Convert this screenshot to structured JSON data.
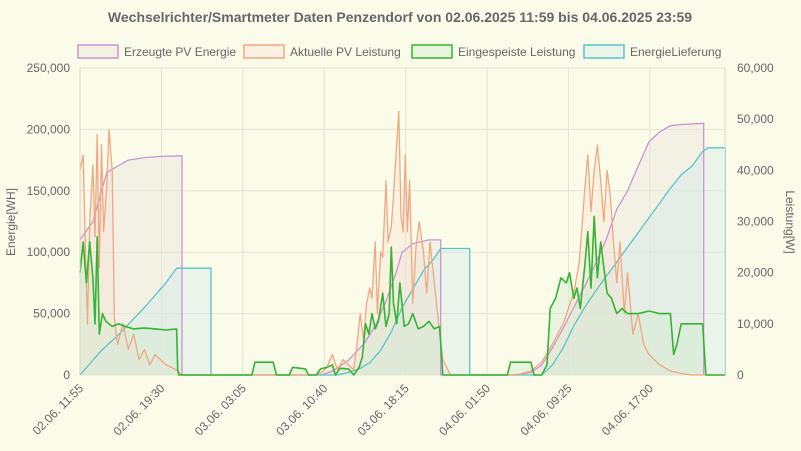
{
  "chart_data": {
    "type": "area",
    "title": "Wechselrichter/Smartmeter Daten Penzendorf von 02.06.2025 11:59 bis 04.06.2025 23:59",
    "legend_position": "top",
    "grid": true,
    "xlabel": "",
    "x_tick_labels": [
      "02.06. 11:55",
      "02.06. 19:30",
      "03.06. 03:05",
      "03.06. 10:40",
      "03.06. 18:15",
      "04.06. 01:50",
      "04.06. 09:25",
      "04.06. 17:00"
    ],
    "x_unit": "hours since 02.06. 11:55",
    "x_tick_hours": [
      0,
      7.583,
      15.167,
      22.75,
      30.333,
      37.917,
      45.5,
      53.083
    ],
    "xlim": [
      0,
      60.083
    ],
    "y_left": {
      "label": "Energie[WH]",
      "ylim": [
        0,
        250000
      ],
      "ticks": [
        0,
        50000,
        100000,
        150000,
        200000,
        250000
      ],
      "tick_labels": [
        "0",
        "50,000",
        "100,000",
        "150,000",
        "200,000",
        "250,000"
      ]
    },
    "y_right": {
      "label": "Leistung[W]",
      "ylim": [
        0,
        60000
      ],
      "ticks": [
        0,
        10000,
        20000,
        30000,
        40000,
        50000,
        60000
      ],
      "tick_labels": [
        "0",
        "10,000",
        "20,000",
        "30,000",
        "40,000",
        "50,000",
        "60,000"
      ]
    },
    "series": [
      {
        "name": "Erzeugte PV Energie",
        "axis": "left",
        "color": "#c896d2",
        "fill": "rgba(232,228,222,0.45)",
        "points": [
          [
            0,
            110000
          ],
          [
            1.2,
            125000
          ],
          [
            2.5,
            165000
          ],
          [
            4.5,
            175000
          ],
          [
            6,
            177000
          ],
          [
            7.5,
            178000
          ],
          [
            9.5,
            178500
          ],
          [
            9.5,
            0
          ],
          [
            22.5,
            0
          ],
          [
            23.5,
            3000
          ],
          [
            25,
            12000
          ],
          [
            26.5,
            26000
          ],
          [
            27.5,
            40000
          ],
          [
            28.5,
            60000
          ],
          [
            29.5,
            85000
          ],
          [
            30,
            100000
          ],
          [
            31,
            107000
          ],
          [
            32.5,
            110000
          ],
          [
            33.6,
            110000
          ],
          [
            33.6,
            0
          ],
          [
            40.5,
            0
          ],
          [
            42,
            2000
          ],
          [
            43,
            8000
          ],
          [
            44,
            22000
          ],
          [
            45,
            38000
          ],
          [
            46,
            55000
          ],
          [
            47,
            72000
          ],
          [
            48,
            90000
          ],
          [
            49,
            110000
          ],
          [
            50,
            135000
          ],
          [
            51,
            150000
          ],
          [
            52,
            170000
          ],
          [
            53,
            190000
          ],
          [
            54,
            198000
          ],
          [
            55,
            203000
          ],
          [
            56,
            204000
          ],
          [
            58.1,
            205000
          ],
          [
            58.1,
            0
          ]
        ]
      },
      {
        "name": "Aktuelle PV Leistung",
        "axis": "right",
        "color": "#f0a882",
        "fill": "rgba(248,220,204,0.30)",
        "points": [
          [
            0,
            40000
          ],
          [
            0.3,
            43000
          ],
          [
            0.5,
            25000
          ],
          [
            0.7,
            10000
          ],
          [
            0.9,
            30000
          ],
          [
            1.2,
            41000
          ],
          [
            1.4,
            27000
          ],
          [
            1.6,
            47000
          ],
          [
            1.8,
            21000
          ],
          [
            2,
            45000
          ],
          [
            2.2,
            28000
          ],
          [
            2.5,
            37000
          ],
          [
            2.7,
            48000
          ],
          [
            3,
            40000
          ],
          [
            3.2,
            11000
          ],
          [
            3.5,
            6000
          ],
          [
            4,
            10000
          ],
          [
            4.5,
            5000
          ],
          [
            5,
            8000
          ],
          [
            5.5,
            3000
          ],
          [
            6,
            5000
          ],
          [
            6.5,
            2000
          ],
          [
            7,
            4000
          ],
          [
            8,
            2000
          ],
          [
            9,
            1000
          ],
          [
            9.5,
            0
          ],
          [
            10,
            0
          ],
          [
            22,
            0
          ],
          [
            22.5,
            500
          ],
          [
            23,
            1500
          ],
          [
            23.5,
            4000
          ],
          [
            24,
            1000
          ],
          [
            24.5,
            3000
          ],
          [
            25,
            2000
          ],
          [
            25.5,
            1000
          ],
          [
            25.8,
            6000
          ],
          [
            26.1,
            12000
          ],
          [
            26.4,
            7000
          ],
          [
            26.7,
            14000
          ],
          [
            27,
            17000
          ],
          [
            27.2,
            15000
          ],
          [
            27.5,
            26000
          ],
          [
            27.7,
            12000
          ],
          [
            28,
            24000
          ],
          [
            28.2,
            23000
          ],
          [
            28.5,
            38000
          ],
          [
            28.7,
            26000
          ],
          [
            29,
            29000
          ],
          [
            29.2,
            35000
          ],
          [
            29.5,
            45000
          ],
          [
            29.7,
            51500
          ],
          [
            29.9,
            31000
          ],
          [
            30.1,
            28000
          ],
          [
            30.3,
            43000
          ],
          [
            30.5,
            28000
          ],
          [
            30.7,
            38000
          ],
          [
            31,
            14000
          ],
          [
            31.3,
            25000
          ],
          [
            31.6,
            30000
          ],
          [
            32,
            24000
          ],
          [
            32.3,
            16000
          ],
          [
            32.6,
            26000
          ],
          [
            33,
            18000
          ],
          [
            33.4,
            10000
          ],
          [
            33.8,
            3000
          ],
          [
            34.5,
            0
          ],
          [
            40,
            0
          ],
          [
            41,
            200
          ],
          [
            42,
            800
          ],
          [
            43,
            2500
          ],
          [
            44,
            6000
          ],
          [
            45,
            10000
          ],
          [
            46,
            16000
          ],
          [
            46.5,
            22000
          ],
          [
            46.8,
            30000
          ],
          [
            47,
            36000
          ],
          [
            47.3,
            43000
          ],
          [
            47.6,
            32000
          ],
          [
            47.9,
            40000
          ],
          [
            48.2,
            45000
          ],
          [
            48.5,
            38000
          ],
          [
            48.8,
            30000
          ],
          [
            49.1,
            40000
          ],
          [
            49.4,
            35000
          ],
          [
            49.7,
            26000
          ],
          [
            50,
            18000
          ],
          [
            50.3,
            26000
          ],
          [
            50.7,
            12000
          ],
          [
            51,
            20000
          ],
          [
            51.5,
            8000
          ],
          [
            52,
            12000
          ],
          [
            52.5,
            6000
          ],
          [
            53,
            4000
          ],
          [
            54,
            2000
          ],
          [
            55,
            800
          ],
          [
            56,
            300
          ],
          [
            57,
            0
          ],
          [
            60.1,
            0
          ]
        ]
      },
      {
        "name": "Eingespeiste Leistung",
        "axis": "right",
        "color": "#35b434",
        "fill": "rgba(208,236,204,0.40)",
        "points": [
          [
            0,
            20000
          ],
          [
            0.3,
            26000
          ],
          [
            0.6,
            18000
          ],
          [
            0.9,
            26000
          ],
          [
            1.2,
            19000
          ],
          [
            1.4,
            10000
          ],
          [
            1.6,
            27000
          ],
          [
            1.8,
            8000
          ],
          [
            2.1,
            12000
          ],
          [
            2.4,
            10500
          ],
          [
            3,
            9500
          ],
          [
            3.6,
            10000
          ],
          [
            4.2,
            9500
          ],
          [
            5,
            9000
          ],
          [
            6,
            9200
          ],
          [
            7,
            9000
          ],
          [
            8,
            8800
          ],
          [
            9,
            9000
          ],
          [
            9.1,
            1000
          ],
          [
            9.2,
            0
          ],
          [
            16,
            0
          ],
          [
            16.3,
            2500
          ],
          [
            18,
            2500
          ],
          [
            18.3,
            0
          ],
          [
            19.5,
            0
          ],
          [
            19.8,
            1500
          ],
          [
            21,
            1200
          ],
          [
            21.3,
            0
          ],
          [
            22,
            0
          ],
          [
            22.4,
            1200
          ],
          [
            23,
            1500
          ],
          [
            23.5,
            2000
          ],
          [
            23.8,
            0
          ],
          [
            24.2,
            1300
          ],
          [
            25,
            1200
          ],
          [
            25.5,
            0
          ],
          [
            26,
            1500
          ],
          [
            26.3,
            3500
          ],
          [
            26.6,
            10000
          ],
          [
            26.9,
            8000
          ],
          [
            27.2,
            12000
          ],
          [
            27.5,
            9000
          ],
          [
            27.8,
            10500
          ],
          [
            28.2,
            16000
          ],
          [
            28.5,
            9500
          ],
          [
            28.8,
            12000
          ],
          [
            29,
            25000
          ],
          [
            29.2,
            14000
          ],
          [
            29.5,
            10000
          ],
          [
            29.8,
            18000
          ],
          [
            30.2,
            9500
          ],
          [
            30.6,
            10000
          ],
          [
            31,
            12000
          ],
          [
            31.5,
            9000
          ],
          [
            32,
            9500
          ],
          [
            32.5,
            10500
          ],
          [
            33,
            9000
          ],
          [
            33.5,
            9500
          ],
          [
            33.8,
            0
          ],
          [
            36,
            0
          ],
          [
            37,
            0
          ],
          [
            39.8,
            0
          ],
          [
            40.1,
            2500
          ],
          [
            42,
            2500
          ],
          [
            42.3,
            0
          ],
          [
            43,
            0
          ],
          [
            43.5,
            2000
          ],
          [
            43.8,
            13000
          ],
          [
            44.3,
            15000
          ],
          [
            44.8,
            19000
          ],
          [
            45.3,
            18000
          ],
          [
            45.6,
            20000
          ],
          [
            46,
            15000
          ],
          [
            46.3,
            17000
          ],
          [
            46.6,
            13000
          ],
          [
            47,
            21000
          ],
          [
            47.3,
            28000
          ],
          [
            47.6,
            17000
          ],
          [
            47.9,
            31000
          ],
          [
            48.2,
            19000
          ],
          [
            48.5,
            26000
          ],
          [
            48.8,
            21000
          ],
          [
            49.1,
            16000
          ],
          [
            49.5,
            15000
          ],
          [
            50,
            12000
          ],
          [
            50.5,
            13000
          ],
          [
            51,
            12000
          ],
          [
            51.5,
            12000
          ],
          [
            52,
            12000
          ],
          [
            53,
            12500
          ],
          [
            54,
            12000
          ],
          [
            55,
            12000
          ],
          [
            55.3,
            4000
          ],
          [
            55.6,
            6000
          ],
          [
            56,
            10000
          ],
          [
            56.5,
            10000
          ],
          [
            57,
            10000
          ],
          [
            58,
            10000
          ],
          [
            58.3,
            0
          ],
          [
            60.1,
            0
          ]
        ]
      },
      {
        "name": "EnergieLieferung",
        "axis": "left",
        "color": "#5ac4c8",
        "fill": "rgba(212,234,232,0.45)",
        "points": [
          [
            0,
            0
          ],
          [
            2,
            20000
          ],
          [
            3.5,
            32000
          ],
          [
            6,
            55000
          ],
          [
            8,
            75000
          ],
          [
            9,
            87000
          ],
          [
            12.2,
            87000
          ],
          [
            12.2,
            0
          ],
          [
            24,
            0
          ],
          [
            25,
            2000
          ],
          [
            26,
            5000
          ],
          [
            27,
            10000
          ],
          [
            28,
            20000
          ],
          [
            29,
            35000
          ],
          [
            30,
            55000
          ],
          [
            31,
            70000
          ],
          [
            32,
            85000
          ],
          [
            33,
            95000
          ],
          [
            33.6,
            103000
          ],
          [
            36.3,
            103000
          ],
          [
            36.3,
            0
          ],
          [
            43,
            0
          ],
          [
            44,
            8000
          ],
          [
            45,
            22000
          ],
          [
            46,
            40000
          ],
          [
            47,
            55000
          ],
          [
            48,
            68000
          ],
          [
            49,
            80000
          ],
          [
            50,
            92000
          ],
          [
            51,
            104000
          ],
          [
            52,
            116000
          ],
          [
            53,
            128000
          ],
          [
            54,
            140000
          ],
          [
            55,
            152000
          ],
          [
            56,
            163000
          ],
          [
            57,
            170000
          ],
          [
            58,
            182000
          ],
          [
            58.5,
            185000
          ],
          [
            60.1,
            185000
          ],
          [
            60.1,
            0
          ]
        ]
      }
    ]
  }
}
